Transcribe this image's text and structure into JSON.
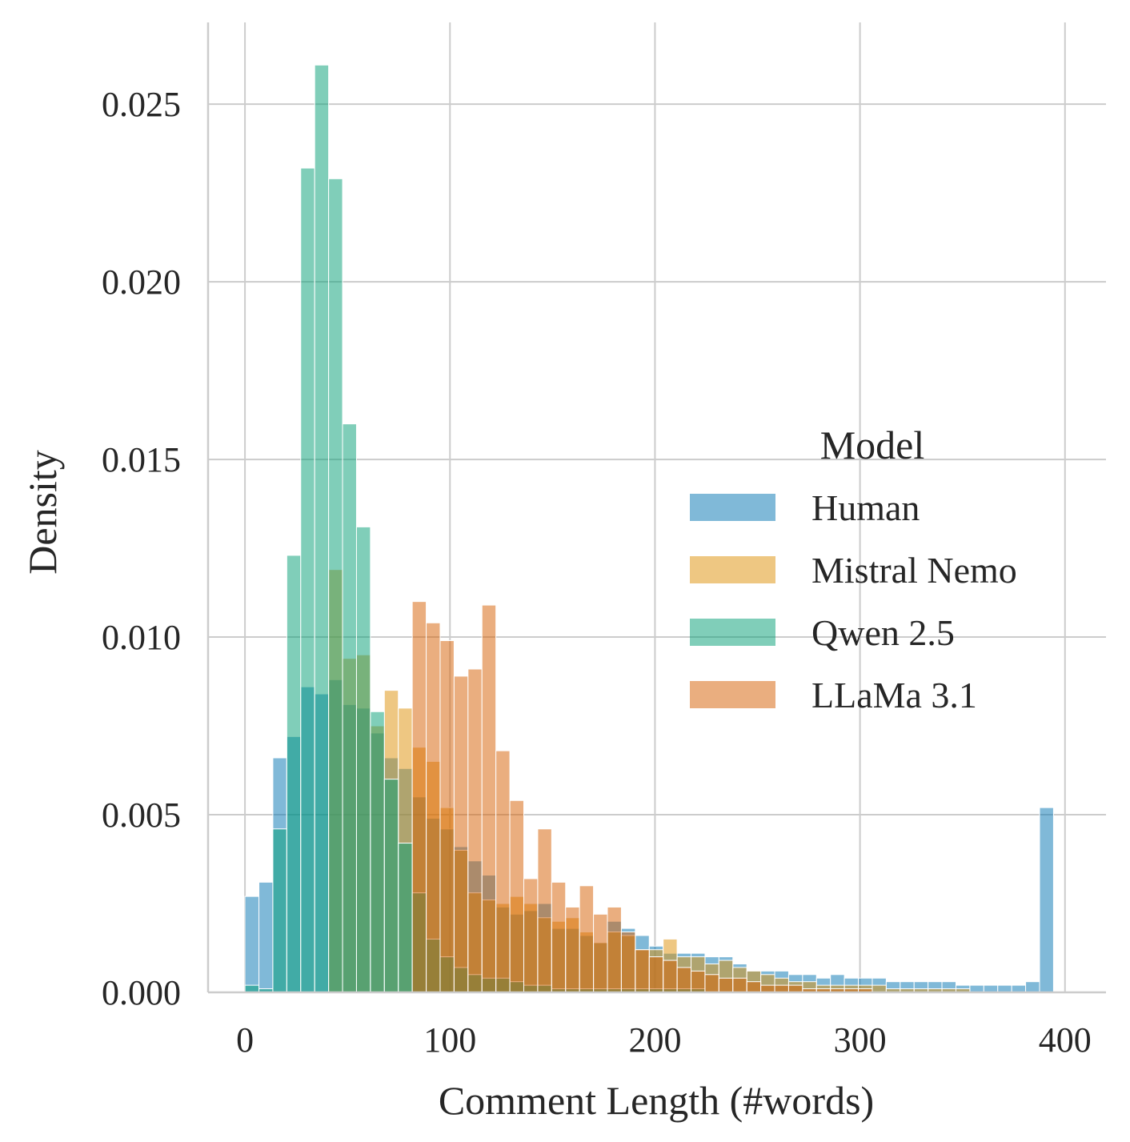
{
  "chart_data": {
    "type": "histogram",
    "xlabel": "Comment Length (#words)",
    "ylabel": "Density",
    "xlim": [
      -18,
      420
    ],
    "ylim": [
      0,
      0.0273
    ],
    "xticks": [
      0,
      100,
      200,
      300,
      400
    ],
    "xtick_labels": [
      "0",
      "100",
      "200",
      "300",
      "400"
    ],
    "yticks": [
      0,
      0.005,
      0.01,
      0.015,
      0.02,
      0.025
    ],
    "ytick_labels": [
      "0.000",
      "0.005",
      "0.010",
      "0.015",
      "0.020",
      "0.025"
    ],
    "grid": true,
    "bin_width": 6.8,
    "bin_start": 0,
    "legend": {
      "title": "Model",
      "placement": "center-right"
    },
    "series": [
      {
        "name": "Human",
        "color": "#0173b2",
        "values": [
          0.0027,
          0.0031,
          0.0066,
          0.0072,
          0.0086,
          0.0084,
          0.0088,
          0.0081,
          0.008,
          0.0073,
          0.0066,
          0.0063,
          0.0055,
          0.0049,
          0.0046,
          0.0041,
          0.0037,
          0.0033,
          0.0024,
          0.0022,
          0.0023,
          0.0025,
          0.0018,
          0.0018,
          0.0016,
          0.0014,
          0.002,
          0.0018,
          0.0016,
          0.0013,
          0.0011,
          0.0011,
          0.0011,
          0.001,
          0.001,
          0.0008,
          0.0006,
          0.0006,
          0.0006,
          0.0005,
          0.0005,
          0.0004,
          0.0005,
          0.0004,
          0.0004,
          0.0004,
          0.0003,
          0.0003,
          0.0003,
          0.0003,
          0.0003,
          0.0002,
          0.0002,
          0.0002,
          0.0002,
          0.0002,
          0.0003,
          0.0052
        ]
      },
      {
        "name": "Mistral Nemo",
        "color": "#de8f05",
        "values": [
          0.0,
          0.0,
          0.0,
          0.0,
          0.0,
          0.0,
          0.0119,
          0.0094,
          0.0095,
          0.0075,
          0.0085,
          0.008,
          0.0069,
          0.0065,
          0.0052,
          0.004,
          0.0028,
          0.0026,
          0.0025,
          0.0027,
          0.0025,
          0.0021,
          0.002,
          0.0021,
          0.0017,
          0.0014,
          0.0017,
          0.0016,
          0.0012,
          0.0012,
          0.0015,
          0.001,
          0.001,
          0.0008,
          0.0009,
          0.0007,
          0.0006,
          0.0005,
          0.0004,
          0.0003,
          0.0003,
          0.0002,
          0.0002,
          0.0002,
          0.0002,
          0.0002,
          0.0001,
          0.0001,
          0.0001,
          0.0001,
          0.0001,
          0.0001,
          0.0,
          0.0,
          0.0,
          0.0,
          0.0,
          0.0
        ]
      },
      {
        "name": "Qwen 2.5",
        "color": "#029e73",
        "values": [
          0.0002,
          0.0001,
          0.0046,
          0.0123,
          0.0232,
          0.0261,
          0.0229,
          0.016,
          0.0131,
          0.0079,
          0.006,
          0.0042,
          0.0028,
          0.0015,
          0.001,
          0.0007,
          0.0005,
          0.0004,
          0.0004,
          0.0003,
          0.0002,
          0.0002,
          0.0001,
          0.0001,
          0.0001,
          0.0001,
          0.0001,
          0.0001,
          0.0001,
          0.0001,
          0.0001,
          0.0001,
          0.0001,
          0.0,
          0.0,
          0.0,
          0.0,
          0.0,
          0.0,
          0.0,
          0.0,
          0.0,
          0.0,
          0.0,
          0.0,
          0.0,
          0.0,
          0.0,
          0.0,
          0.0,
          0.0,
          0.0,
          0.0,
          0.0,
          0.0,
          0.0,
          0.0,
          0.0
        ]
      },
      {
        "name": "LLaMa 3.1",
        "color": "#d55e00",
        "values": [
          0.0,
          0.0,
          0.0,
          0.0,
          0.0,
          0.0,
          0.0,
          0.0,
          0.0,
          0.0,
          0.0,
          0.0,
          0.011,
          0.0104,
          0.0099,
          0.0089,
          0.0091,
          0.0109,
          0.0068,
          0.0054,
          0.0032,
          0.0046,
          0.0031,
          0.0024,
          0.003,
          0.0022,
          0.0024,
          0.0017,
          0.0012,
          0.001,
          0.0009,
          0.0007,
          0.0006,
          0.0005,
          0.0004,
          0.0004,
          0.0003,
          0.0002,
          0.0002,
          0.0002,
          0.0001,
          0.0001,
          0.0001,
          0.0001,
          0.0001,
          0.0,
          0.0,
          0.0,
          0.0,
          0.0,
          0.0,
          0.0,
          0.0,
          0.0,
          0.0,
          0.0,
          0.0,
          0.0
        ]
      }
    ]
  }
}
